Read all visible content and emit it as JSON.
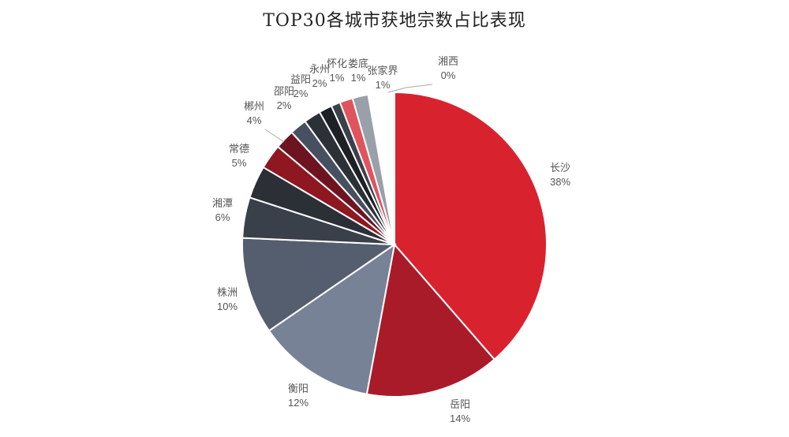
{
  "chart_data": {
    "type": "pie",
    "title": "TOP30各城市获地宗数占比表现",
    "slices": [
      {
        "label": "长沙",
        "value": 38,
        "pct_label": "38%",
        "color": "#D8232F"
      },
      {
        "label": "岳阳",
        "value": 14,
        "pct_label": "14%",
        "color": "#AA1B2A"
      },
      {
        "label": "衡阳",
        "value": 12,
        "pct_label": "12%",
        "color": "#788296"
      },
      {
        "label": "株洲",
        "value": 10,
        "pct_label": "10%",
        "color": "#555E6E"
      },
      {
        "label": "湘潭",
        "value": 6,
        "pct_label": "6%",
        "color": "#3A4049"
      },
      {
        "label": "常德",
        "value": 5,
        "pct_label": "5%",
        "color": "#2B2F36"
      },
      {
        "label": "郴州",
        "value": 4,
        "pct_label": "4%",
        "color": "#8E1722"
      },
      {
        "label": "邵阳",
        "value": 2,
        "pct_label": "2%",
        "color": "#6E1420"
      },
      {
        "label": "益阳",
        "value": 2,
        "pct_label": "2%",
        "color": "#475060"
      },
      {
        "label": "永州",
        "value": 2,
        "pct_label": "2%",
        "color": "#2C3138"
      },
      {
        "label": "怀化",
        "value": 1,
        "pct_label": "1%",
        "color": "#1D2025"
      },
      {
        "label": "娄底",
        "value": 1,
        "pct_label": "1%",
        "color": "#3B414B"
      },
      {
        "label": "张家界",
        "value": 1,
        "pct_label": "1%",
        "color": "#E0545E"
      },
      {
        "label": "湘西",
        "value": 0,
        "pct_label": "0%",
        "color": "#9AA0AA"
      }
    ]
  }
}
